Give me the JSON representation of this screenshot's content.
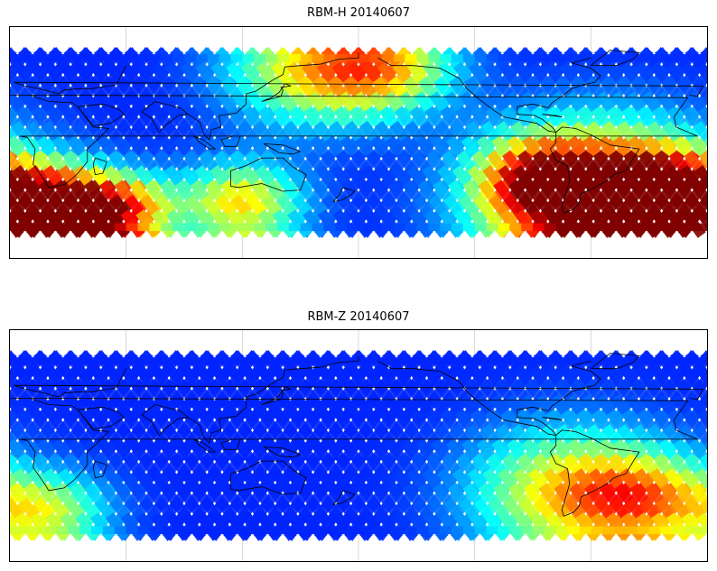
{
  "panels": [
    {
      "title": "RBM-H 20140607",
      "hot_zones": [
        {
          "lon": 25,
          "lat": -55,
          "spread": 22,
          "value": 0.95
        },
        {
          "lon": 60,
          "lat": -55,
          "spread": 18,
          "value": 0.55
        },
        {
          "lon": 120,
          "lat": -50,
          "spread": 22,
          "value": 0.5
        },
        {
          "lon": 155,
          "lat": 55,
          "spread": 30,
          "value": 0.45
        },
        {
          "lon": 195,
          "lat": 57,
          "spread": 25,
          "value": 0.45
        },
        {
          "lon": 272,
          "lat": -30,
          "spread": 20,
          "value": 0.45
        },
        {
          "lon": 305,
          "lat": -50,
          "spread": 40,
          "value": 0.95
        },
        {
          "lon": 340,
          "lat": -45,
          "spread": 22,
          "value": 0.7
        }
      ]
    },
    {
      "title": "RBM-Z 20140607",
      "hot_zones": [
        {
          "lon": 20,
          "lat": -55,
          "spread": 22,
          "value": 0.4
        },
        {
          "lon": 290,
          "lat": -40,
          "spread": 35,
          "value": 0.5
        },
        {
          "lon": 330,
          "lat": -45,
          "spread": 25,
          "value": 0.4
        }
      ]
    }
  ],
  "map": {
    "projection": "equirectangular",
    "lon_range": [
      0,
      360
    ],
    "lat_range": [
      -90,
      90
    ],
    "data_lat_range": [
      -69,
      69
    ],
    "grid_lon_step": 60,
    "grid_lat_step": 30,
    "colormap": "jet",
    "track_count": 46
  },
  "colors": {
    "coastline": "#000000",
    "gridline": "#c8c8c8",
    "frame": "#000000"
  }
}
